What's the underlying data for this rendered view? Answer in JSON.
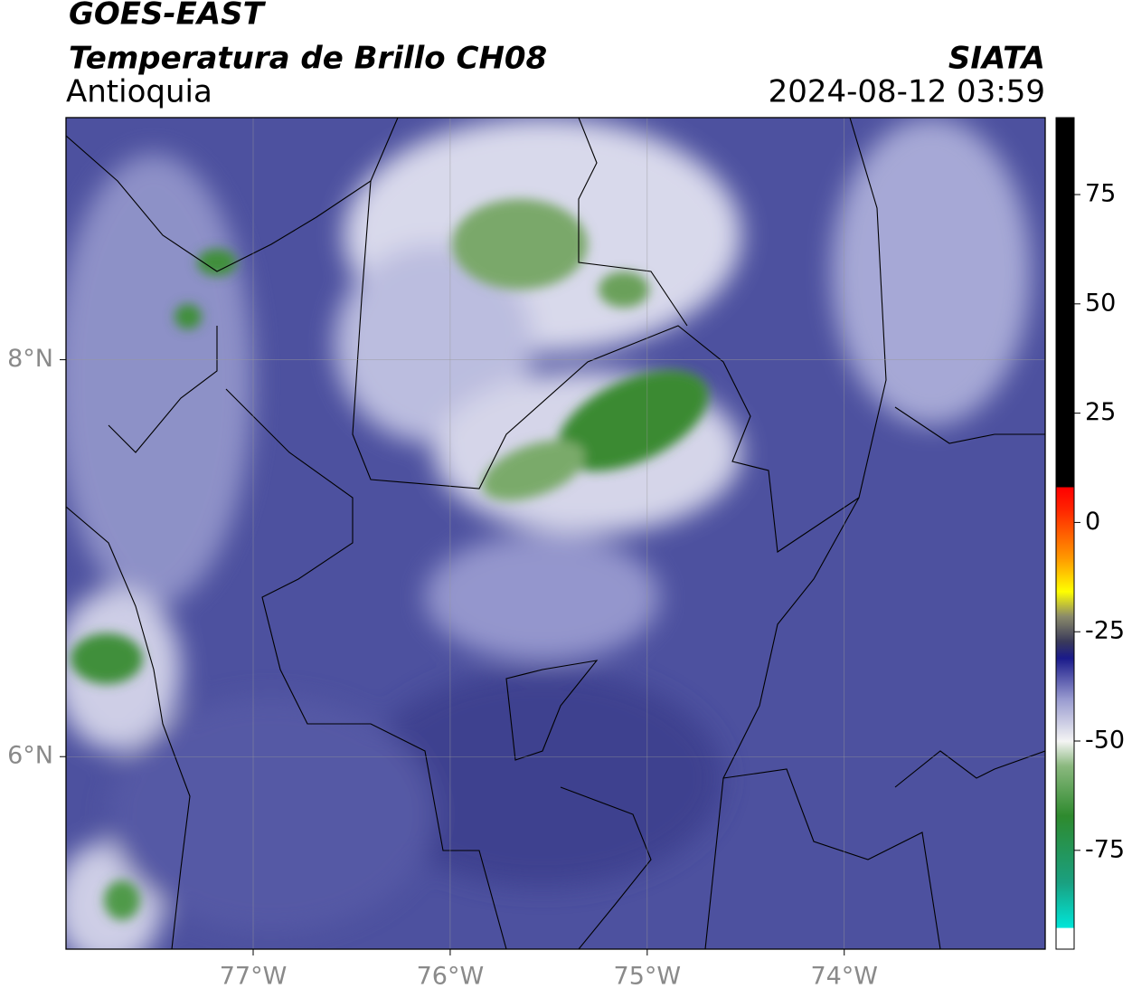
{
  "header": {
    "title": "GOES-EAST",
    "subtitle": "Temperatura de Brillo CH08",
    "region": "Antioquia",
    "source": "SIATA",
    "datetime": "2024-08-12 03:59"
  },
  "map": {
    "lon_range": [
      -77.95,
      -72.98
    ],
    "lat_range": [
      5.03,
      9.22
    ],
    "lon_ticks": [
      {
        "value": -77,
        "label": "77°W"
      },
      {
        "value": -76,
        "label": "76°W"
      },
      {
        "value": -75,
        "label": "75°W"
      },
      {
        "value": -74,
        "label": "74°W"
      }
    ],
    "lat_ticks": [
      {
        "value": 8,
        "label": "8°N"
      },
      {
        "value": 6,
        "label": "6°N"
      }
    ]
  },
  "colorbar": {
    "range": [
      -97.6,
      92.6
    ],
    "ticks": [
      75,
      50,
      25,
      0,
      -25,
      -50,
      -75
    ]
  }
}
